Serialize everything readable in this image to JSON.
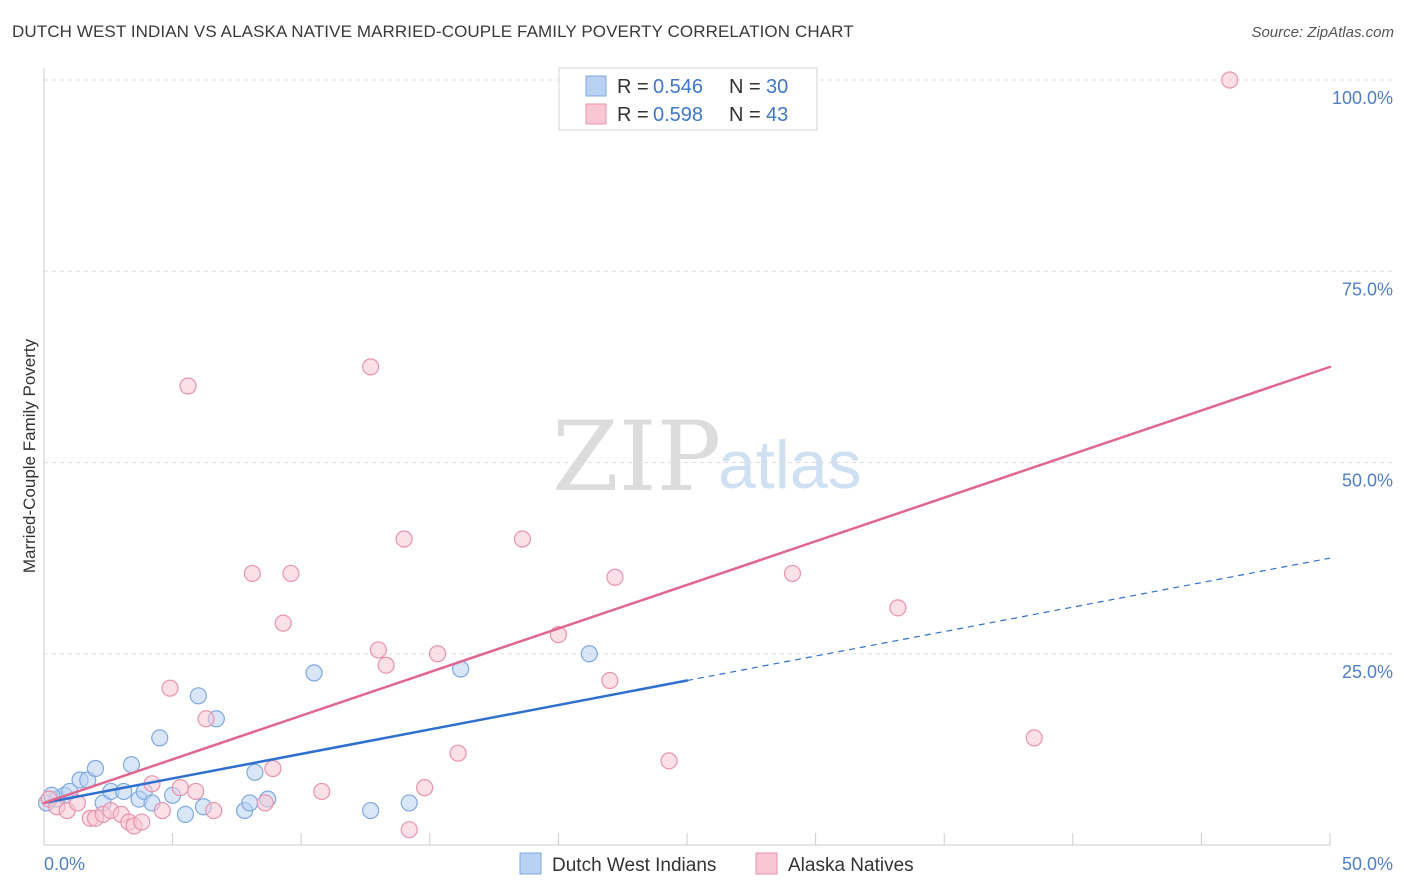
{
  "header": {
    "title": "DUTCH WEST INDIAN VS ALASKA NATIVE MARRIED-COUPLE FAMILY POVERTY CORRELATION CHART",
    "source": "Source: ZipAtlas.com"
  },
  "watermark": {
    "zip": "ZIP",
    "atlas": "atlas"
  },
  "colors": {
    "blue_fill": "#b9d1f3",
    "blue_stroke": "#7ea8e0",
    "blue_line": "#2f6fce",
    "pink_fill": "#f8c6d4",
    "pink_stroke": "#e893ae",
    "pink_line": "#e06890",
    "tick_text": "#4f7fc4",
    "grid": "#dddddd"
  },
  "legend": {
    "rows": [
      {
        "r_label": "R =",
        "r_value": "0.546",
        "n_label": "N =",
        "n_value": "30"
      },
      {
        "r_label": "R =",
        "r_value": "0.598",
        "n_label": "N =",
        "n_value": "43"
      }
    ]
  },
  "chart_data": {
    "type": "scatter",
    "title": "DUTCH WEST INDIAN VS ALASKA NATIVE MARRIED-COUPLE FAMILY POVERTY CORRELATION CHART",
    "xlabel": "",
    "ylabel": "Married-Couple Family Poverty",
    "xlim": [
      0,
      50
    ],
    "ylim": [
      0,
      100
    ],
    "x_tick_labels": [
      "0.0%",
      "50.0%"
    ],
    "y_ticks": [
      25,
      50,
      75,
      100
    ],
    "y_tick_labels": [
      "25.0%",
      "50.0%",
      "75.0%",
      "100.0%"
    ],
    "grid": true,
    "series": [
      {
        "name": "Dutch West Indians",
        "color": "blue",
        "points": [
          [
            0.1,
            5.5
          ],
          [
            0.5,
            6.0
          ],
          [
            0.8,
            6.5
          ],
          [
            1.0,
            7.0
          ],
          [
            1.4,
            8.5
          ],
          [
            1.7,
            8.5
          ],
          [
            2.0,
            10.0
          ],
          [
            2.3,
            5.5
          ],
          [
            2.6,
            7.0
          ],
          [
            3.1,
            7.0
          ],
          [
            3.4,
            10.5
          ],
          [
            3.7,
            6.0
          ],
          [
            3.9,
            7.0
          ],
          [
            4.2,
            5.5
          ],
          [
            4.5,
            14.0
          ],
          [
            5.0,
            6.5
          ],
          [
            5.5,
            4.0
          ],
          [
            6.0,
            19.5
          ],
          [
            6.2,
            5.0
          ],
          [
            6.7,
            16.5
          ],
          [
            7.8,
            4.5
          ],
          [
            8.0,
            5.5
          ],
          [
            8.2,
            9.5
          ],
          [
            8.7,
            6.0
          ],
          [
            10.5,
            22.5
          ],
          [
            12.7,
            4.5
          ],
          [
            14.2,
            5.5
          ],
          [
            16.2,
            23.0
          ],
          [
            21.2,
            25.0
          ],
          [
            0.3,
            6.5
          ]
        ],
        "trend": {
          "x0": 0,
          "y0": 5.5,
          "x1": 25,
          "y1": 21.5,
          "dash_to_x": 50,
          "dash_to_y": 37.5
        }
      },
      {
        "name": "Alaska Natives",
        "color": "pink",
        "points": [
          [
            0.2,
            6.0
          ],
          [
            0.5,
            5.0
          ],
          [
            0.9,
            4.5
          ],
          [
            1.3,
            5.5
          ],
          [
            1.8,
            3.5
          ],
          [
            2.0,
            3.5
          ],
          [
            2.3,
            4.0
          ],
          [
            2.6,
            4.5
          ],
          [
            3.0,
            4.0
          ],
          [
            3.3,
            3.0
          ],
          [
            3.5,
            2.5
          ],
          [
            3.8,
            3.0
          ],
          [
            4.2,
            8.0
          ],
          [
            4.6,
            4.5
          ],
          [
            4.9,
            20.5
          ],
          [
            5.3,
            7.5
          ],
          [
            5.6,
            60.0
          ],
          [
            5.9,
            7.0
          ],
          [
            6.3,
            16.5
          ],
          [
            6.6,
            4.5
          ],
          [
            8.1,
            35.5
          ],
          [
            8.6,
            5.5
          ],
          [
            8.9,
            10.0
          ],
          [
            9.3,
            29.0
          ],
          [
            9.6,
            35.5
          ],
          [
            10.8,
            7.0
          ],
          [
            12.7,
            62.5
          ],
          [
            13.0,
            25.5
          ],
          [
            13.3,
            23.5
          ],
          [
            14.0,
            40.0
          ],
          [
            14.2,
            2.0
          ],
          [
            14.8,
            7.5
          ],
          [
            15.3,
            25.0
          ],
          [
            16.1,
            12.0
          ],
          [
            18.6,
            40.0
          ],
          [
            20.0,
            27.5
          ],
          [
            22.0,
            21.5
          ],
          [
            22.2,
            35.0
          ],
          [
            24.3,
            11.0
          ],
          [
            29.1,
            35.5
          ],
          [
            33.2,
            31.0
          ],
          [
            38.5,
            14.0
          ],
          [
            46.1,
            100.0
          ]
        ],
        "trend": {
          "x0": 0,
          "y0": 5.5,
          "x1": 50,
          "y1": 62.5
        }
      }
    ]
  },
  "bottom_legend": {
    "items": [
      {
        "label": "Dutch West Indians",
        "color": "blue"
      },
      {
        "label": "Alaska Natives",
        "color": "pink"
      }
    ]
  }
}
